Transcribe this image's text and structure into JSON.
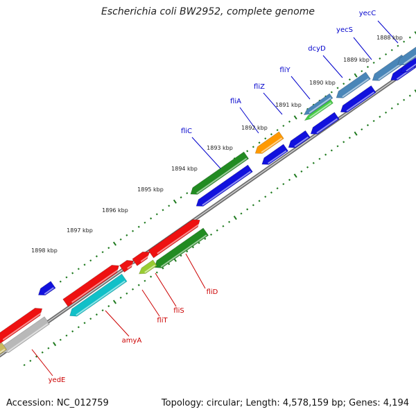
{
  "title": "Escherichia coli BW2952, complete genome",
  "footer": {
    "accession": "Accession: NC_012759",
    "topology": "Topology: circular; Length: 4,578,159 bp; Genes: 4,194"
  },
  "colors": {
    "backbone": "#808080",
    "tick": "#1f7a1f",
    "label_top": "#0000cc",
    "label_bottom": "#cc0000",
    "red": "#ee1111",
    "blue": "#1111dd",
    "green": "#228b22",
    "cyan": "#10c0c8",
    "orange": "#ff9900",
    "steel": "#4a86b8",
    "lightgreen": "#44cc44",
    "gray": "#b8b8b8",
    "olive": "#c8b860",
    "yellowgreen": "#99cc33"
  },
  "kbp_labels": [
    "1888 kbp",
    "1889 kbp",
    "1890 kbp",
    "1891 kbp",
    "1892 kbp",
    "1893 kbp",
    "1894 kbp",
    "1895 kbp",
    "1896 kbp",
    "1897 kbp",
    "1898 kbp"
  ],
  "top_gene_labels": [
    "yecC",
    "yecS",
    "dcyD",
    "fliY",
    "fliZ",
    "fliA",
    "fliC"
  ],
  "bottom_gene_labels": [
    "fliD",
    "fliS",
    "fliT",
    "amyA",
    "yedE"
  ]
}
